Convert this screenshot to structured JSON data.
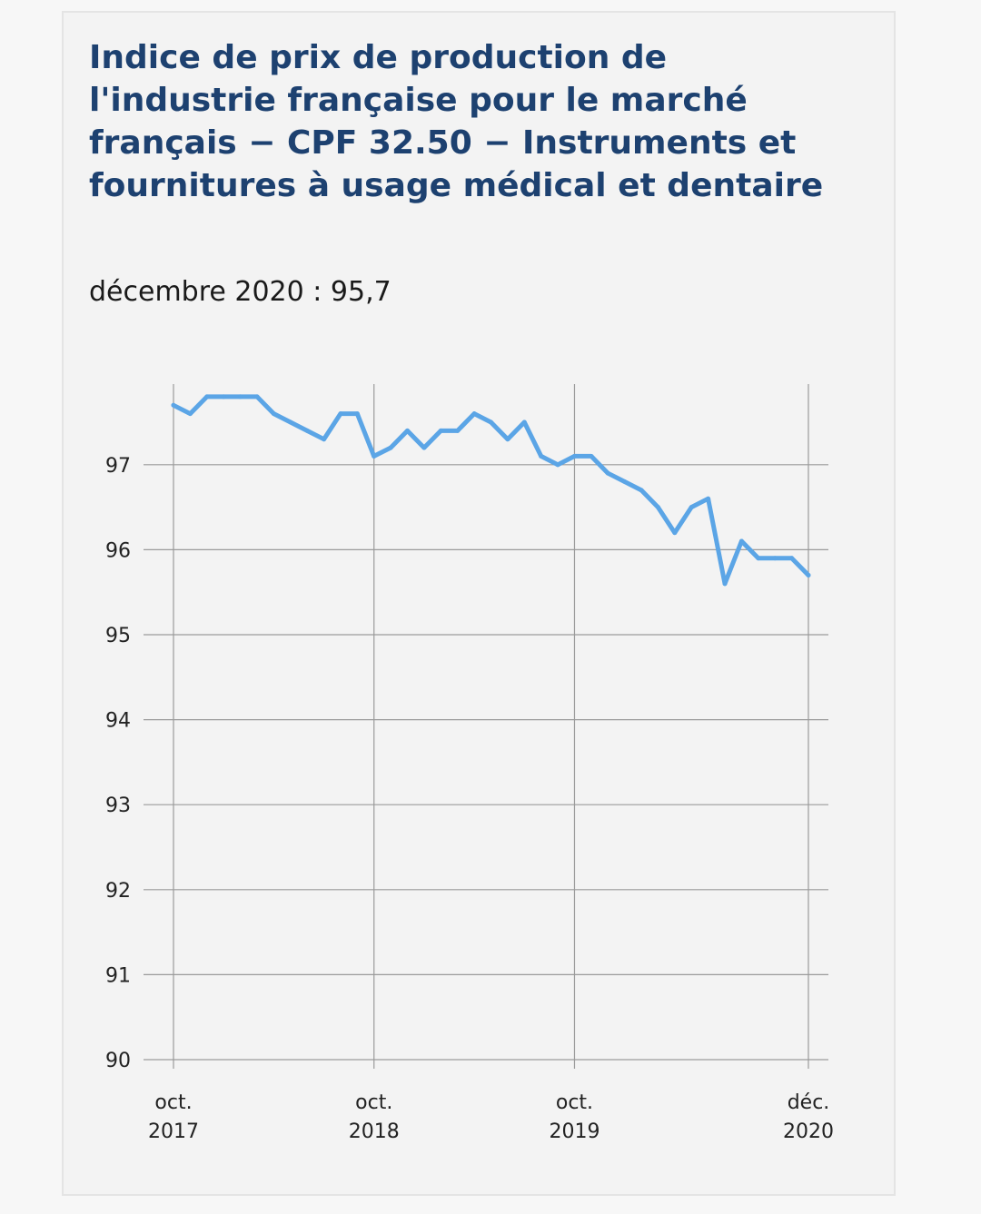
{
  "title": "Indice de prix de production de l'industrie française pour le marché français − CPF 32.50 − Instruments et fournitures à usage médical et dentaire",
  "subtitle": "décembre 2020 : 95,7",
  "colors": {
    "line": "#5ba5e6",
    "grid": "#9a9a9a",
    "title": "#1d4170"
  },
  "chart_data": {
    "type": "line",
    "title": "Indice de prix de production de l'industrie française pour le marché français − CPF 32.50 − Instruments et fournitures à usage médical et dentaire",
    "xlabel": "",
    "ylabel": "",
    "ylim": [
      90,
      97.8
    ],
    "yticks": [
      90,
      91,
      92,
      93,
      94,
      95,
      96,
      97
    ],
    "xticks": [
      {
        "date": "2017-10",
        "line1": "oct.",
        "line2": "2017"
      },
      {
        "date": "2018-10",
        "line1": "oct.",
        "line2": "2018"
      },
      {
        "date": "2019-10",
        "line1": "oct.",
        "line2": "2019"
      },
      {
        "date": "2020-12",
        "line1": "déc.",
        "line2": "2020"
      }
    ],
    "x_range": [
      "2017-10",
      "2020-12"
    ],
    "grid": true,
    "series": [
      {
        "x": [
          "2017-10",
          "2017-11",
          "2017-12",
          "2018-01",
          "2018-02",
          "2018-03",
          "2018-04",
          "2018-05",
          "2018-06",
          "2018-07",
          "2018-08",
          "2018-09",
          "2018-10",
          "2018-11",
          "2018-12",
          "2019-01",
          "2019-02",
          "2019-03",
          "2019-04",
          "2019-05",
          "2019-06",
          "2019-07",
          "2019-08",
          "2019-09",
          "2019-10",
          "2019-11",
          "2019-12",
          "2020-01",
          "2020-02",
          "2020-03",
          "2020-04",
          "2020-05",
          "2020-06",
          "2020-07",
          "2020-08",
          "2020-09",
          "2020-10",
          "2020-11",
          "2020-12"
        ],
        "values": [
          97.7,
          97.6,
          97.8,
          97.8,
          97.8,
          97.8,
          97.6,
          97.5,
          97.4,
          97.3,
          97.6,
          97.6,
          97.1,
          97.2,
          97.4,
          97.2,
          97.4,
          97.4,
          97.6,
          97.5,
          97.3,
          97.5,
          97.1,
          97.0,
          97.1,
          97.1,
          96.9,
          96.8,
          96.7,
          96.5,
          96.2,
          96.5,
          96.6,
          95.6,
          96.1,
          95.9,
          95.9,
          95.9,
          95.7
        ]
      }
    ]
  }
}
